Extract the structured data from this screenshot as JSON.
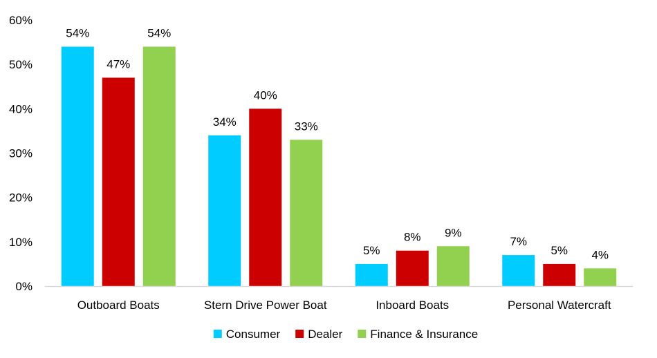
{
  "chart_data": {
    "type": "bar",
    "categories": [
      "Outboard Boats",
      "Stern Drive Power Boat",
      "Inboard Boats",
      "Personal Watercraft"
    ],
    "series": [
      {
        "name": "Consumer",
        "values": [
          54,
          34,
          5,
          7
        ],
        "color": "#00CCFF"
      },
      {
        "name": "Dealer",
        "values": [
          47,
          40,
          8,
          5
        ],
        "color": "#CC0000"
      },
      {
        "name": "Finance & Insurance",
        "values": [
          54,
          33,
          9,
          4
        ],
        "color": "#92D050"
      }
    ],
    "ylim": [
      0,
      60
    ],
    "yticks": [
      0,
      10,
      20,
      30,
      40,
      50,
      60
    ],
    "ytick_labels": [
      "0%",
      "10%",
      "20%",
      "30%",
      "40%",
      "50%",
      "60%"
    ],
    "data_labels": [
      [
        "54%",
        "34%",
        "5%",
        "7%"
      ],
      [
        "47%",
        "40%",
        "8%",
        "5%"
      ],
      [
        "54%",
        "33%",
        "9%",
        "4%"
      ]
    ],
    "grid": false,
    "legend": "bottom",
    "axis_color": "#D9D9D9"
  }
}
